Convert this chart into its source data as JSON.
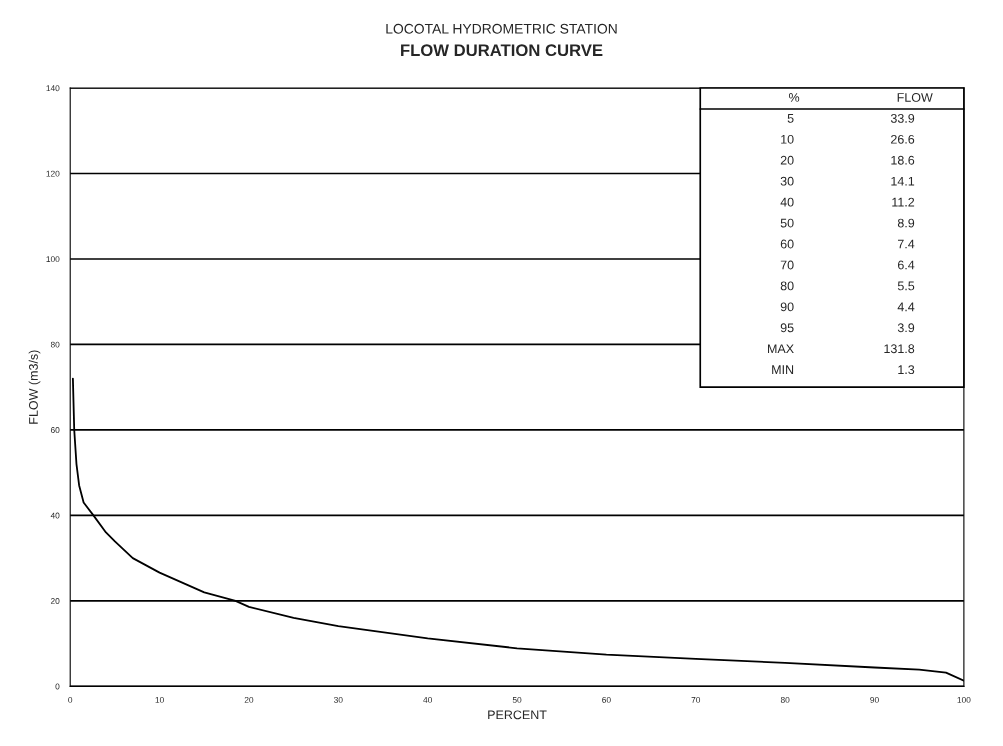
{
  "chart_data": {
    "type": "line",
    "title": "LOCOTAL HYDROMETRIC STATION",
    "subtitle": "FLOW DURATION CURVE",
    "xlabel": "PERCENT",
    "ylabel": "FLOW (m3/s)",
    "x": [
      0.3,
      0.45,
      0.7,
      1,
      1.5,
      2.6,
      4,
      5,
      7,
      10,
      15,
      18.5,
      20,
      25,
      30,
      40,
      50,
      60,
      70,
      80,
      90,
      95,
      98,
      100
    ],
    "series": [
      {
        "color": "#000000",
        "values": [
          72,
          60,
          52,
          47,
          43,
          40,
          36,
          33.9,
          30,
          26.6,
          22,
          20,
          18.6,
          16,
          14.1,
          11.2,
          8.9,
          7.4,
          6.4,
          5.5,
          4.4,
          3.9,
          3.2,
          1.3
        ]
      }
    ],
    "xlim": [
      0,
      100
    ],
    "xticks": [
      0,
      10,
      20,
      30,
      40,
      50,
      60,
      70,
      80,
      90,
      100
    ],
    "ylim": [
      0,
      140
    ],
    "yticks": [
      0,
      20,
      40,
      60,
      80,
      100,
      120,
      140
    ],
    "grid": "y",
    "legend": false,
    "marker": "none",
    "line_style": "solid",
    "annotations": [
      "%",
      "FLOW",
      "5",
      "33.9",
      "10",
      "26.6",
      "20",
      "18.6",
      "30",
      "14.1",
      "40",
      "11.2",
      "50",
      "8.9",
      "60",
      "7.4",
      "70",
      "6.4",
      "80",
      "5.5",
      "90",
      "4.4",
      "95",
      "3.9",
      "MAX",
      "131.8",
      "MIN",
      "1.3"
    ]
  }
}
